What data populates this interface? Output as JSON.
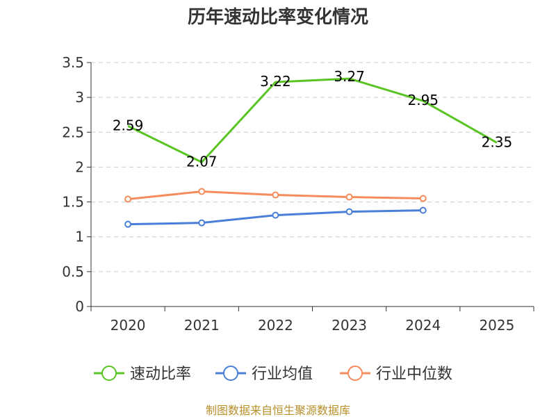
{
  "chart_data": {
    "type": "line",
    "title": "历年速动比率变化情况",
    "categories": [
      "2020",
      "2021",
      "2022",
      "2023",
      "2024",
      "2025"
    ],
    "ylim": [
      0,
      3.5
    ],
    "yticks": [
      0,
      0.5,
      1,
      1.5,
      2,
      2.5,
      3,
      3.5
    ],
    "ytick_labels": [
      "0",
      "0.5",
      "1",
      "1.5",
      "2",
      "2.5",
      "3",
      "3.5"
    ],
    "grid": true,
    "legend_position": "bottom",
    "series": [
      {
        "name": "速动比率",
        "color": "#5ac424",
        "values": [
          2.59,
          2.07,
          3.22,
          3.27,
          2.95,
          2.35
        ],
        "labels": [
          "2.59",
          "2.07",
          "3.22",
          "3.27",
          "2.95",
          "2.35"
        ],
        "markers": false,
        "show_labels": true
      },
      {
        "name": "行业均值",
        "color": "#4a7fd9",
        "values": [
          1.18,
          1.2,
          1.31,
          1.36,
          1.38,
          null
        ],
        "markers": true,
        "show_labels": false
      },
      {
        "name": "行业中位数",
        "color": "#f68b5c",
        "values": [
          1.54,
          1.65,
          1.6,
          1.57,
          1.55,
          null
        ],
        "markers": true,
        "show_labels": false
      }
    ],
    "source": "制图数据来自恒生聚源数据库",
    "source_color": "#b8902a"
  }
}
